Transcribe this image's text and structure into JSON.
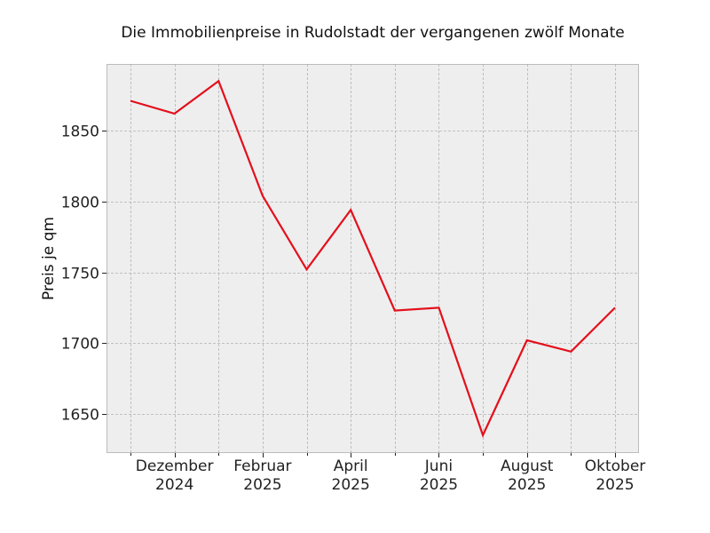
{
  "chart_data": {
    "type": "line",
    "title": "Die Immobilienpreise in Rudolstadt der vergangenen zwölf Monate",
    "xlabel": "",
    "ylabel": "Preis je qm",
    "x": [
      "2024-11",
      "2024-12",
      "2025-01",
      "2025-02",
      "2025-03",
      "2025-04",
      "2025-05",
      "2025-06",
      "2025-07",
      "2025-08",
      "2025-09",
      "2025-10"
    ],
    "series": [
      {
        "name": "Preis je qm",
        "color": "#e3101c",
        "values": [
          1871,
          1862,
          1885,
          1804,
          1752,
          1794,
          1723,
          1725,
          1635,
          1702,
          1694,
          1725
        ]
      }
    ],
    "x_tick_labels": [
      {
        "month": "Dezember",
        "year": "2024"
      },
      {
        "month": "Februar",
        "year": "2025"
      },
      {
        "month": "April",
        "year": "2025"
      },
      {
        "month": "Juni",
        "year": "2025"
      },
      {
        "month": "August",
        "year": "2025"
      },
      {
        "month": "Oktober",
        "year": "2025"
      }
    ],
    "y_ticks": [
      1650,
      1700,
      1750,
      1800,
      1850
    ],
    "ylim": [
      1622,
      1896
    ],
    "grid": true,
    "background": "#eeeeee",
    "legend": "none"
  }
}
